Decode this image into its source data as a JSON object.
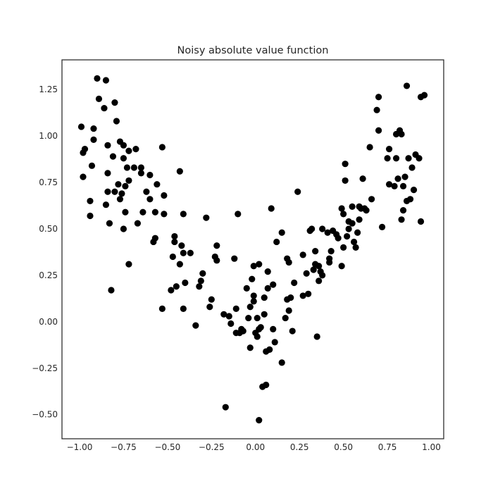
{
  "chart_data": {
    "type": "scatter",
    "title": "Noisy absolute value function",
    "xlabel": "",
    "ylabel": "",
    "xlim": [
      -1.1,
      1.07
    ],
    "ylim": [
      -0.63,
      1.41
    ],
    "xticks": [
      -1.0,
      -0.75,
      -0.5,
      -0.25,
      0.0,
      0.25,
      0.5,
      0.75,
      1.0
    ],
    "xtick_labels": [
      "−1.00",
      "−0.75",
      "−0.50",
      "−0.25",
      "0.00",
      "0.25",
      "0.50",
      "0.75",
      "1.00"
    ],
    "yticks": [
      -0.5,
      -0.25,
      0.0,
      0.25,
      0.5,
      0.75,
      1.0,
      1.25
    ],
    "ytick_labels": [
      "−0.50",
      "−0.25",
      "0.00",
      "0.25",
      "0.50",
      "0.75",
      "1.00",
      "1.25"
    ],
    "grid": false,
    "marker_color": "#000000",
    "points": [
      [
        -0.99,
        1.05
      ],
      [
        -0.98,
        0.91
      ],
      [
        -0.97,
        0.93
      ],
      [
        -0.98,
        0.78
      ],
      [
        -0.94,
        0.65
      ],
      [
        -0.94,
        0.57
      ],
      [
        -0.93,
        0.84
      ],
      [
        -0.92,
        0.98
      ],
      [
        -0.92,
        1.04
      ],
      [
        -0.9,
        1.31
      ],
      [
        -0.89,
        1.2
      ],
      [
        -0.85,
        1.3
      ],
      [
        -0.86,
        1.15
      ],
      [
        -0.84,
        0.95
      ],
      [
        -0.84,
        0.8
      ],
      [
        -0.85,
        0.63
      ],
      [
        -0.84,
        0.7
      ],
      [
        -0.83,
        0.53
      ],
      [
        -0.82,
        0.17
      ],
      [
        -0.81,
        0.89
      ],
      [
        -0.8,
        1.18
      ],
      [
        -0.79,
        1.08
      ],
      [
        -0.8,
        0.7
      ],
      [
        -0.78,
        0.74
      ],
      [
        -0.77,
        0.97
      ],
      [
        -0.77,
        0.66
      ],
      [
        -0.75,
        0.95
      ],
      [
        -0.76,
        0.69
      ],
      [
        -0.75,
        0.88
      ],
      [
        -0.74,
        0.73
      ],
      [
        -0.74,
        0.59
      ],
      [
        -0.75,
        0.5
      ],
      [
        -0.72,
        0.92
      ],
      [
        -0.73,
        0.83
      ],
      [
        -0.72,
        0.76
      ],
      [
        -0.72,
        0.31
      ],
      [
        -0.69,
        0.83
      ],
      [
        -0.68,
        0.93
      ],
      [
        -0.67,
        0.53
      ],
      [
        -0.65,
        0.83
      ],
      [
        -0.65,
        0.8
      ],
      [
        -0.64,
        0.59
      ],
      [
        -0.62,
        0.7
      ],
      [
        -0.6,
        0.79
      ],
      [
        -0.6,
        0.66
      ],
      [
        -0.58,
        0.43
      ],
      [
        -0.57,
        0.45
      ],
      [
        -0.57,
        0.59
      ],
      [
        -0.56,
        0.74
      ],
      [
        -0.53,
        0.94
      ],
      [
        -0.52,
        0.68
      ],
      [
        -0.52,
        0.58
      ],
      [
        -0.53,
        0.07
      ],
      [
        -0.48,
        0.17
      ],
      [
        -0.47,
        0.35
      ],
      [
        -0.46,
        0.46
      ],
      [
        -0.46,
        0.43
      ],
      [
        -0.45,
        0.19
      ],
      [
        -0.43,
        0.81
      ],
      [
        -0.43,
        0.31
      ],
      [
        -0.42,
        0.41
      ],
      [
        -0.41,
        0.58
      ],
      [
        -0.41,
        0.37
      ],
      [
        -0.4,
        0.21
      ],
      [
        -0.41,
        0.07
      ],
      [
        -0.37,
        0.37
      ],
      [
        -0.34,
        -0.02
      ],
      [
        -0.32,
        0.19
      ],
      [
        -0.31,
        0.22
      ],
      [
        -0.3,
        0.26
      ],
      [
        -0.28,
        0.56
      ],
      [
        -0.26,
        0.08
      ],
      [
        -0.25,
        0.12
      ],
      [
        -0.23,
        0.35
      ],
      [
        -0.22,
        0.33
      ],
      [
        -0.22,
        0.41
      ],
      [
        -0.18,
        0.04
      ],
      [
        -0.17,
        -0.46
      ],
      [
        -0.15,
        0.03
      ],
      [
        -0.14,
        -0.01
      ],
      [
        -0.12,
        0.34
      ],
      [
        -0.11,
        0.07
      ],
      [
        -0.11,
        -0.06
      ],
      [
        -0.1,
        0.58
      ],
      [
        -0.09,
        -0.06
      ],
      [
        -0.08,
        -0.04
      ],
      [
        -0.07,
        -0.05
      ],
      [
        -0.05,
        0.18
      ],
      [
        -0.04,
        0.02
      ],
      [
        -0.03,
        0.08
      ],
      [
        -0.03,
        -0.14
      ],
      [
        -0.02,
        0.23
      ],
      [
        -0.01,
        0.3
      ],
      [
        -0.01,
        0.14
      ],
      [
        -0.01,
        0.11
      ],
      [
        0.0,
        -0.06
      ],
      [
        0.01,
        -0.08
      ],
      [
        0.01,
        0.02
      ],
      [
        0.02,
        0.31
      ],
      [
        0.02,
        -0.04
      ],
      [
        0.02,
        -0.53
      ],
      [
        0.03,
        -0.03
      ],
      [
        0.04,
        -0.35
      ],
      [
        0.05,
        0.13
      ],
      [
        0.05,
        0.04
      ],
      [
        0.06,
        -0.34
      ],
      [
        0.06,
        -0.16
      ],
      [
        0.07,
        0.27
      ],
      [
        0.07,
        0.18
      ],
      [
        0.08,
        -0.15
      ],
      [
        0.09,
        0.61
      ],
      [
        0.1,
        -0.04
      ],
      [
        0.1,
        0.2
      ],
      [
        0.11,
        -0.11
      ],
      [
        0.12,
        0.43
      ],
      [
        0.15,
        0.48
      ],
      [
        0.15,
        -0.22
      ],
      [
        0.17,
        0.02
      ],
      [
        0.18,
        0.34
      ],
      [
        0.18,
        0.12
      ],
      [
        0.19,
        0.06
      ],
      [
        0.19,
        0.32
      ],
      [
        0.2,
        0.13
      ],
      [
        0.21,
        -0.05
      ],
      [
        0.22,
        0.21
      ],
      [
        0.24,
        0.7
      ],
      [
        0.27,
        0.36
      ],
      [
        0.27,
        0.14
      ],
      [
        0.29,
        0.26
      ],
      [
        0.3,
        0.15
      ],
      [
        0.31,
        0.49
      ],
      [
        0.32,
        0.5
      ],
      [
        0.33,
        0.28
      ],
      [
        0.34,
        0.38
      ],
      [
        0.34,
        0.31
      ],
      [
        0.35,
        -0.08
      ],
      [
        0.36,
        0.22
      ],
      [
        0.36,
        0.3
      ],
      [
        0.37,
        0.27
      ],
      [
        0.38,
        0.25
      ],
      [
        0.38,
        0.5
      ],
      [
        0.41,
        0.48
      ],
      [
        0.42,
        0.32
      ],
      [
        0.42,
        0.34
      ],
      [
        0.43,
        0.38
      ],
      [
        0.44,
        0.49
      ],
      [
        0.46,
        0.47
      ],
      [
        0.47,
        0.45
      ],
      [
        0.49,
        0.3
      ],
      [
        0.49,
        0.61
      ],
      [
        0.5,
        0.4
      ],
      [
        0.5,
        0.58
      ],
      [
        0.51,
        0.76
      ],
      [
        0.51,
        0.85
      ],
      [
        0.52,
        0.46
      ],
      [
        0.53,
        0.5
      ],
      [
        0.53,
        0.54
      ],
      [
        0.55,
        0.62
      ],
      [
        0.55,
        0.53
      ],
      [
        0.56,
        0.43
      ],
      [
        0.57,
        0.4
      ],
      [
        0.58,
        0.48
      ],
      [
        0.59,
        0.55
      ],
      [
        0.59,
        0.62
      ],
      [
        0.6,
        0.61
      ],
      [
        0.61,
        0.77
      ],
      [
        0.62,
        0.61
      ],
      [
        0.63,
        0.6
      ],
      [
        0.65,
        0.94
      ],
      [
        0.66,
        0.66
      ],
      [
        0.69,
        1.14
      ],
      [
        0.7,
        1.03
      ],
      [
        0.7,
        1.21
      ],
      [
        0.72,
        0.51
      ],
      [
        0.75,
        0.88
      ],
      [
        0.76,
        0.74
      ],
      [
        0.76,
        0.93
      ],
      [
        0.79,
        0.73
      ],
      [
        0.8,
        1.01
      ],
      [
        0.8,
        0.88
      ],
      [
        0.81,
        0.77
      ],
      [
        0.82,
        1.03
      ],
      [
        0.83,
        0.55
      ],
      [
        0.83,
        1.01
      ],
      [
        0.84,
        0.6
      ],
      [
        0.84,
        0.73
      ],
      [
        0.85,
        0.78
      ],
      [
        0.86,
        0.65
      ],
      [
        0.86,
        1.27
      ],
      [
        0.87,
        0.88
      ],
      [
        0.88,
        0.66
      ],
      [
        0.89,
        0.83
      ],
      [
        0.9,
        0.71
      ],
      [
        0.91,
        0.9
      ],
      [
        0.93,
        0.88
      ],
      [
        0.94,
        0.54
      ],
      [
        0.94,
        1.21
      ],
      [
        0.96,
        1.22
      ]
    ]
  }
}
